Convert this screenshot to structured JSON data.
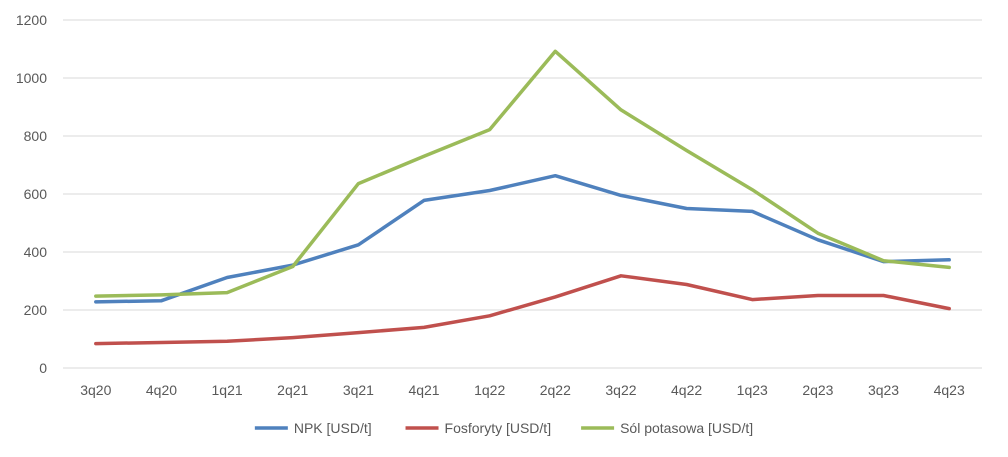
{
  "chart_data": {
    "type": "line",
    "categories": [
      "3q20",
      "4q20",
      "1q21",
      "2q21",
      "3q21",
      "4q21",
      "1q22",
      "2q22",
      "3q22",
      "4q22",
      "1q23",
      "2q23",
      "3q23",
      "4q23"
    ],
    "series": [
      {
        "name": "NPK  [USD/t]",
        "color": "#4f81bd",
        "values": [
          228,
          232,
          312,
          355,
          425,
          578,
          612,
          663,
          595,
          550,
          540,
          442,
          367,
          373
        ]
      },
      {
        "name": "Fosforyty [USD/t]",
        "color": "#c0504d",
        "values": [
          84,
          88,
          92,
          105,
          122,
          140,
          180,
          245,
          318,
          288,
          236,
          250,
          250,
          205
        ]
      },
      {
        "name": "Sól potasowa [USD/t]",
        "color": "#9bbb59",
        "values": [
          248,
          252,
          260,
          350,
          636,
          730,
          822,
          1092,
          890,
          750,
          615,
          465,
          370,
          347
        ]
      }
    ],
    "ylim": [
      0,
      1200
    ],
    "yticks": [
      0,
      200,
      400,
      600,
      800,
      1000,
      1200
    ],
    "grid": true,
    "legend": "bottom",
    "gridColor": "#d9d9d9",
    "textColor": "#595959"
  }
}
